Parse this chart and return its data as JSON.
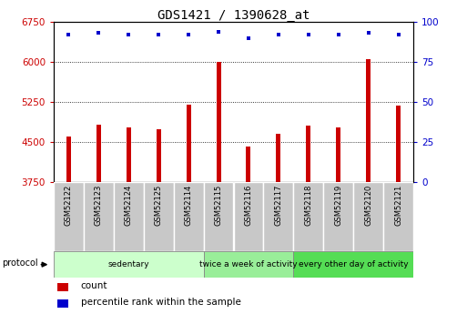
{
  "title": "GDS1421 / 1390628_at",
  "samples": [
    "GSM52122",
    "GSM52123",
    "GSM52124",
    "GSM52125",
    "GSM52114",
    "GSM52115",
    "GSM52116",
    "GSM52117",
    "GSM52118",
    "GSM52119",
    "GSM52120",
    "GSM52121"
  ],
  "counts": [
    4600,
    4820,
    4780,
    4740,
    5200,
    6000,
    4420,
    4660,
    4810,
    4770,
    6050,
    5180
  ],
  "percentiles": [
    92,
    93,
    92,
    92,
    92,
    94,
    90,
    92,
    92,
    92,
    93,
    92
  ],
  "ylim_left": [
    3750,
    6750
  ],
  "ylim_right": [
    0,
    100
  ],
  "yticks_left": [
    3750,
    4500,
    5250,
    6000,
    6750
  ],
  "yticks_right": [
    0,
    25,
    50,
    75,
    100
  ],
  "bar_color": "#cc0000",
  "dot_color": "#0000cc",
  "groups": [
    {
      "label": "sedentary",
      "start": 0,
      "end": 4,
      "color": "#ccffcc"
    },
    {
      "label": "twice a week of activity",
      "start": 5,
      "end": 7,
      "color": "#99ee99"
    },
    {
      "label": "every other day of activity",
      "start": 8,
      "end": 11,
      "color": "#55dd55"
    }
  ],
  "protocol_label": "protocol",
  "legend_count_label": "count",
  "legend_pct_label": "percentile rank within the sample",
  "title_fontsize": 10,
  "axis_label_color_left": "#cc0000",
  "axis_label_color_right": "#0000cc",
  "grid_color": "#000000",
  "bg_color": "#ffffff",
  "bar_width": 0.15,
  "sample_box_color": "#c8c8c8",
  "sample_box_edge": "#ffffff"
}
